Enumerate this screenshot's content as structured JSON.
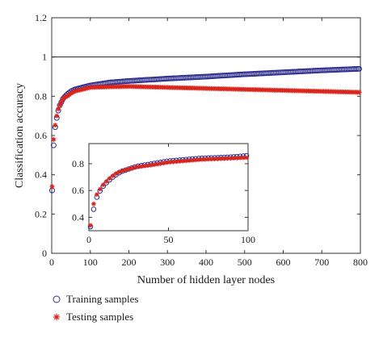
{
  "chart_data": [
    {
      "id": "main",
      "type": "scatter",
      "xlabel": "Number of hidden layer nodes",
      "ylabel": "Classification accuracy",
      "xlim": [
        0,
        800
      ],
      "ylim": [
        0,
        1.2
      ],
      "xticks": [
        "0",
        "100",
        "200",
        "300",
        "400",
        "500",
        "600",
        "700",
        "800"
      ],
      "yticks": [
        "0",
        "0.2",
        "0.4",
        "0.6",
        "0.8",
        "1",
        "1.2"
      ],
      "reference_line_y": 1.0,
      "grid": false,
      "series": [
        {
          "name": "Training samples",
          "marker": "open-circle",
          "color": "#2e2e8f",
          "points": [
            [
              1,
              0.32
            ],
            [
              3,
              0.45
            ],
            [
              5,
              0.55
            ],
            [
              8,
              0.63
            ],
            [
              12,
              0.68
            ],
            [
              16,
              0.72
            ],
            [
              20,
              0.75
            ],
            [
              25,
              0.77
            ],
            [
              30,
              0.79
            ],
            [
              40,
              0.81
            ],
            [
              50,
              0.825
            ],
            [
              60,
              0.835
            ],
            [
              80,
              0.845
            ],
            [
              100,
              0.855
            ],
            [
              150,
              0.87
            ],
            [
              200,
              0.878
            ],
            [
              300,
              0.89
            ],
            [
              400,
              0.9
            ],
            [
              500,
              0.912
            ],
            [
              600,
              0.922
            ],
            [
              700,
              0.932
            ],
            [
              800,
              0.94
            ]
          ]
        },
        {
          "name": "Testing samples",
          "marker": "asterisk",
          "color": "#d9261c",
          "points": [
            [
              1,
              0.34
            ],
            [
              3,
              0.5
            ],
            [
              5,
              0.58
            ],
            [
              8,
              0.64
            ],
            [
              12,
              0.69
            ],
            [
              16,
              0.73
            ],
            [
              20,
              0.75
            ],
            [
              25,
              0.77
            ],
            [
              30,
              0.79
            ],
            [
              40,
              0.8
            ],
            [
              50,
              0.815
            ],
            [
              60,
              0.825
            ],
            [
              80,
              0.835
            ],
            [
              100,
              0.845
            ],
            [
              150,
              0.848
            ],
            [
              200,
              0.85
            ],
            [
              300,
              0.845
            ],
            [
              400,
              0.84
            ],
            [
              500,
              0.835
            ],
            [
              600,
              0.83
            ],
            [
              700,
              0.825
            ],
            [
              800,
              0.82
            ]
          ]
        }
      ]
    },
    {
      "id": "inset",
      "type": "scatter",
      "xlim": [
        0,
        100
      ],
      "ylim": [
        0.3,
        0.95
      ],
      "xticks": [
        "0",
        "50",
        "100"
      ],
      "yticks": [
        "0.4",
        "0.6",
        "0.8"
      ],
      "grid": false,
      "series": [
        {
          "name": "Training samples",
          "marker": "open-circle",
          "color": "#2e2e8f",
          "points": [
            [
              1,
              0.33
            ],
            [
              3,
              0.46
            ],
            [
              5,
              0.55
            ],
            [
              8,
              0.62
            ],
            [
              12,
              0.67
            ],
            [
              16,
              0.71
            ],
            [
              20,
              0.74
            ],
            [
              25,
              0.76
            ],
            [
              30,
              0.78
            ],
            [
              40,
              0.8
            ],
            [
              50,
              0.82
            ],
            [
              60,
              0.83
            ],
            [
              70,
              0.84
            ],
            [
              80,
              0.845
            ],
            [
              90,
              0.85
            ],
            [
              100,
              0.86
            ]
          ]
        },
        {
          "name": "Testing samples",
          "marker": "asterisk",
          "color": "#d9261c",
          "points": [
            [
              1,
              0.34
            ],
            [
              3,
              0.5
            ],
            [
              5,
              0.57
            ],
            [
              8,
              0.63
            ],
            [
              12,
              0.68
            ],
            [
              16,
              0.72
            ],
            [
              20,
              0.745
            ],
            [
              25,
              0.76
            ],
            [
              30,
              0.775
            ],
            [
              40,
              0.79
            ],
            [
              50,
              0.81
            ],
            [
              60,
              0.82
            ],
            [
              70,
              0.83
            ],
            [
              80,
              0.835
            ],
            [
              90,
              0.84
            ],
            [
              100,
              0.845
            ]
          ]
        }
      ]
    }
  ],
  "legend": {
    "placement": "bottom-left",
    "items": [
      "Training samples",
      "Testing samples"
    ]
  }
}
